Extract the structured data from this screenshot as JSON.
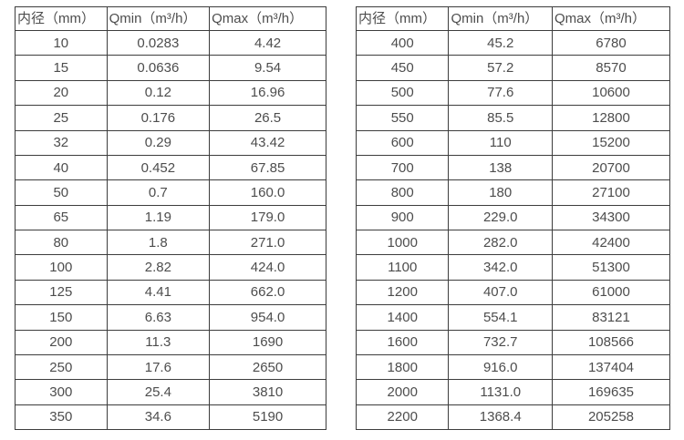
{
  "page": {
    "background_color": "#ffffff",
    "text_color": "#4d4d4d",
    "border_color": "#3d3d3d"
  },
  "tables": [
    {
      "name": "flow-table-small-diameters",
      "headers": [
        "内径（mm）",
        "Qmin（m³/h）",
        "Qmax（m³/h）"
      ],
      "rows": [
        [
          "10",
          "0.0283",
          "4.42"
        ],
        [
          "15",
          "0.0636",
          "9.54"
        ],
        [
          "20",
          "0.12",
          "16.96"
        ],
        [
          "25",
          "0.176",
          "26.5"
        ],
        [
          "32",
          "0.29",
          "43.42"
        ],
        [
          "40",
          "0.452",
          "67.85"
        ],
        [
          "50",
          "0.7",
          "160.0"
        ],
        [
          "65",
          "1.19",
          "179.0"
        ],
        [
          "80",
          "1.8",
          "271.0"
        ],
        [
          "100",
          "2.82",
          "424.0"
        ],
        [
          "125",
          "4.41",
          "662.0"
        ],
        [
          "150",
          "6.63",
          "954.0"
        ],
        [
          "200",
          "11.3",
          "1690"
        ],
        [
          "250",
          "17.6",
          "2650"
        ],
        [
          "300",
          "25.4",
          "3810"
        ],
        [
          "350",
          "34.6",
          "5190"
        ]
      ]
    },
    {
      "name": "flow-table-large-diameters",
      "headers": [
        "内径（mm）",
        "Qmin（m³/h）",
        "Qmax（m³/h）"
      ],
      "rows": [
        [
          "400",
          "45.2",
          "6780"
        ],
        [
          "450",
          "57.2",
          "8570"
        ],
        [
          "500",
          "77.6",
          "10600"
        ],
        [
          "550",
          "85.5",
          "12800"
        ],
        [
          "600",
          "110",
          "15200"
        ],
        [
          "700",
          "138",
          "20700"
        ],
        [
          "800",
          "180",
          "27100"
        ],
        [
          "900",
          "229.0",
          "34300"
        ],
        [
          "1000",
          "282.0",
          "42400"
        ],
        [
          "1100",
          "342.0",
          "51300"
        ],
        [
          "1200",
          "407.0",
          "61000"
        ],
        [
          "1400",
          "554.1",
          "83121"
        ],
        [
          "1600",
          "732.7",
          "108566"
        ],
        [
          "1800",
          "916.0",
          "137404"
        ],
        [
          "2000",
          "1131.0",
          "169635"
        ],
        [
          "2200",
          "1368.4",
          "205258"
        ]
      ]
    }
  ]
}
